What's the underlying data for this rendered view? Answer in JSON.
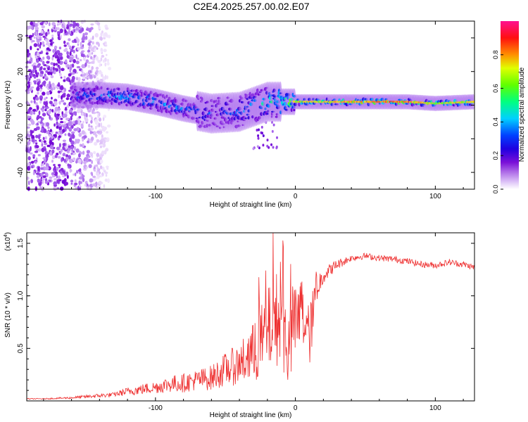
{
  "figure_title": "C2E4.2025.257.00.02.E07",
  "chart_data": [
    {
      "type": "heatmap",
      "panel": "top",
      "xlabel": "Height of straight line (km)",
      "ylabel": "Frequency (Hz)",
      "xlim": [
        -192,
        128
      ],
      "ylim": [
        -50,
        50
      ],
      "xticks": [
        -100,
        0,
        100
      ],
      "yticks": [
        -40,
        -20,
        0,
        20,
        40
      ],
      "xtick_labels": [
        "-100",
        "0",
        "100"
      ],
      "ytick_labels": [
        "-40",
        "-20",
        "0",
        "20",
        "40"
      ],
      "colorbar": {
        "label": "Normalized spectral amplitude",
        "range": [
          0,
          1
        ],
        "ticks": [
          0.0,
          0.2,
          0.4,
          0.6,
          0.8
        ],
        "tick_labels": [
          "0.0",
          "0.2",
          "0.4",
          "0.6",
          "0.8"
        ],
        "colormap": [
          "#ffffff",
          "#c8a8f0",
          "#8a2be2",
          "#3300cc",
          "#0000ff",
          "#00c8ff",
          "#00ff90",
          "#60ff00",
          "#ffff00",
          "#ff9900",
          "#ff0000",
          "#ff0080"
        ]
      },
      "signal_band": {
        "description": "concentrated spectral energy track",
        "x": [
          -160,
          -140,
          -120,
          -100,
          -80,
          -60,
          -40,
          -20,
          0,
          20,
          40,
          60,
          80,
          100,
          128
        ],
        "center_hz": [
          6,
          6,
          5,
          2,
          -2,
          -5,
          -4,
          2,
          2,
          2,
          2,
          2,
          2,
          1,
          2
        ],
        "peak_amplitude": [
          0.45,
          0.5,
          0.55,
          0.5,
          0.45,
          0.4,
          0.45,
          0.6,
          0.85,
          0.85,
          0.9,
          0.95,
          0.95,
          0.8,
          0.85
        ]
      },
      "noise_region_x": [
        -192,
        -130
      ]
    },
    {
      "type": "line",
      "panel": "bottom",
      "title": "",
      "xlabel": "Height of straight line (km)",
      "ylabel": "SNR (10 * v/v)",
      "y_multiplier_label": "(x10",
      "y_multiplier_exp": "4",
      "y_multiplier_close": ")",
      "xlim": [
        -192,
        128
      ],
      "ylim": [
        0.0,
        1.6
      ],
      "xticks": [
        -100,
        0,
        100
      ],
      "yticks": [
        0.5,
        1.0,
        1.5
      ],
      "xtick_labels": [
        "-100",
        "0",
        "100"
      ],
      "ytick_labels": [
        "0.5",
        "1.0",
        "1.5"
      ],
      "series": [
        {
          "name": "SNR",
          "color": "#ee3030",
          "x": [
            -192,
            -180,
            -160,
            -140,
            -130,
            -120,
            -110,
            -100,
            -90,
            -80,
            -70,
            -60,
            -50,
            -40,
            -30,
            -20,
            -15,
            -10,
            -5,
            0,
            5,
            10,
            15,
            20,
            25,
            30,
            40,
            50,
            60,
            70,
            80,
            90,
            100,
            110,
            120,
            128
          ],
          "y": [
            0.02,
            0.02,
            0.03,
            0.05,
            0.06,
            0.09,
            0.11,
            0.13,
            0.16,
            0.17,
            0.2,
            0.22,
            0.3,
            0.35,
            0.45,
            0.65,
            0.8,
            0.75,
            0.5,
            0.7,
            0.85,
            0.6,
            1.05,
            1.2,
            1.25,
            1.3,
            1.36,
            1.38,
            1.36,
            1.35,
            1.33,
            1.3,
            1.29,
            1.32,
            1.3,
            1.27
          ],
          "noise": [
            0.005,
            0.005,
            0.01,
            0.02,
            0.02,
            0.04,
            0.05,
            0.06,
            0.08,
            0.09,
            0.1,
            0.12,
            0.16,
            0.2,
            0.3,
            0.4,
            0.45,
            0.45,
            0.4,
            0.4,
            0.35,
            0.3,
            0.18,
            0.08,
            0.06,
            0.05,
            0.03,
            0.03,
            0.03,
            0.03,
            0.03,
            0.03,
            0.03,
            0.03,
            0.03,
            0.03
          ]
        }
      ]
    }
  ]
}
